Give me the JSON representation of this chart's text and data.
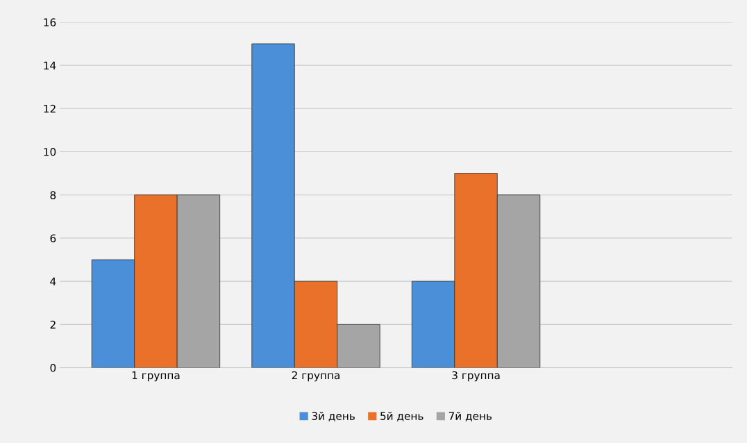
{
  "chart_data": {
    "type": "bar",
    "categories": [
      "1 группа",
      "2 группа",
      "3 группа"
    ],
    "series": [
      {
        "name": "3й день",
        "color": "#4a8fd8",
        "values": [
          5,
          15,
          4
        ]
      },
      {
        "name": "5й день",
        "color": "#e9712a",
        "values": [
          8,
          4,
          9
        ]
      },
      {
        "name": "7й день",
        "color": "#a5a5a5",
        "values": [
          8,
          2,
          8
        ]
      }
    ],
    "ylim": [
      0,
      16
    ],
    "yticks": [
      0,
      2,
      4,
      6,
      8,
      10,
      12,
      14,
      16
    ],
    "grid": "y",
    "legend": "bottom"
  }
}
